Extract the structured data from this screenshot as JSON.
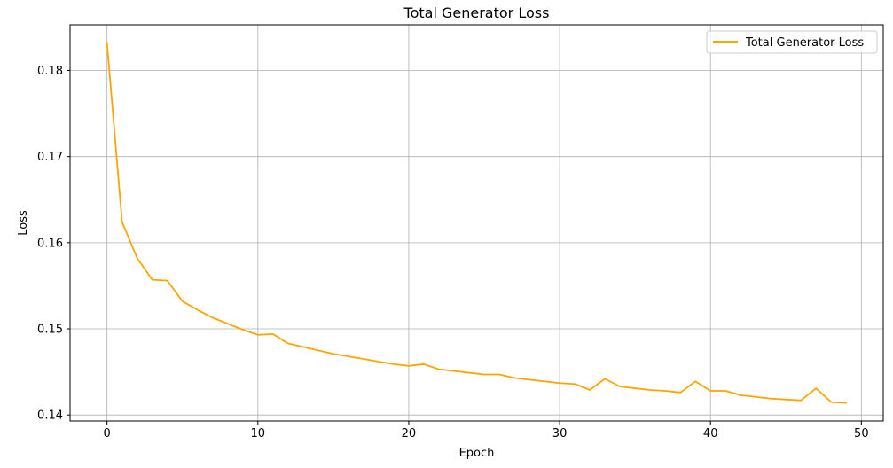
{
  "chart_data": {
    "type": "line",
    "title": "Total Generator Loss",
    "xlabel": "Epoch",
    "ylabel": "Loss",
    "xlim": [
      -2.45,
      51.45
    ],
    "ylim": [
      0.1393,
      0.1853
    ],
    "xticks": [
      0,
      10,
      20,
      30,
      40,
      50
    ],
    "yticks": [
      0.14,
      0.15,
      0.16,
      0.17,
      0.18
    ],
    "grid": true,
    "legend_position": "top-right",
    "series": [
      {
        "name": "Total Generator Loss",
        "color": "#ffa500",
        "x": [
          0,
          1,
          2,
          3,
          4,
          5,
          6,
          7,
          8,
          9,
          10,
          11,
          12,
          13,
          14,
          15,
          16,
          17,
          18,
          19,
          20,
          21,
          22,
          23,
          24,
          25,
          26,
          27,
          28,
          29,
          30,
          31,
          32,
          33,
          34,
          35,
          36,
          37,
          38,
          39,
          40,
          41,
          42,
          43,
          44,
          45,
          46,
          47,
          48,
          49
        ],
        "y": [
          0.1832,
          0.1624,
          0.1582,
          0.1557,
          0.1556,
          0.1532,
          0.1522,
          0.1513,
          0.1506,
          0.1499,
          0.1493,
          0.1494,
          0.1483,
          0.1479,
          0.1475,
          0.1471,
          0.1468,
          0.1465,
          0.1462,
          0.1459,
          0.1457,
          0.1459,
          0.1453,
          0.1451,
          0.1449,
          0.1447,
          0.1447,
          0.1443,
          0.1441,
          0.1439,
          0.1437,
          0.1436,
          0.1429,
          0.1442,
          0.1433,
          0.1431,
          0.1429,
          0.1428,
          0.1426,
          0.1439,
          0.1428,
          0.1428,
          0.1423,
          0.1421,
          0.1419,
          0.1418,
          0.1417,
          0.1431,
          0.1415,
          0.1414
        ]
      }
    ]
  }
}
